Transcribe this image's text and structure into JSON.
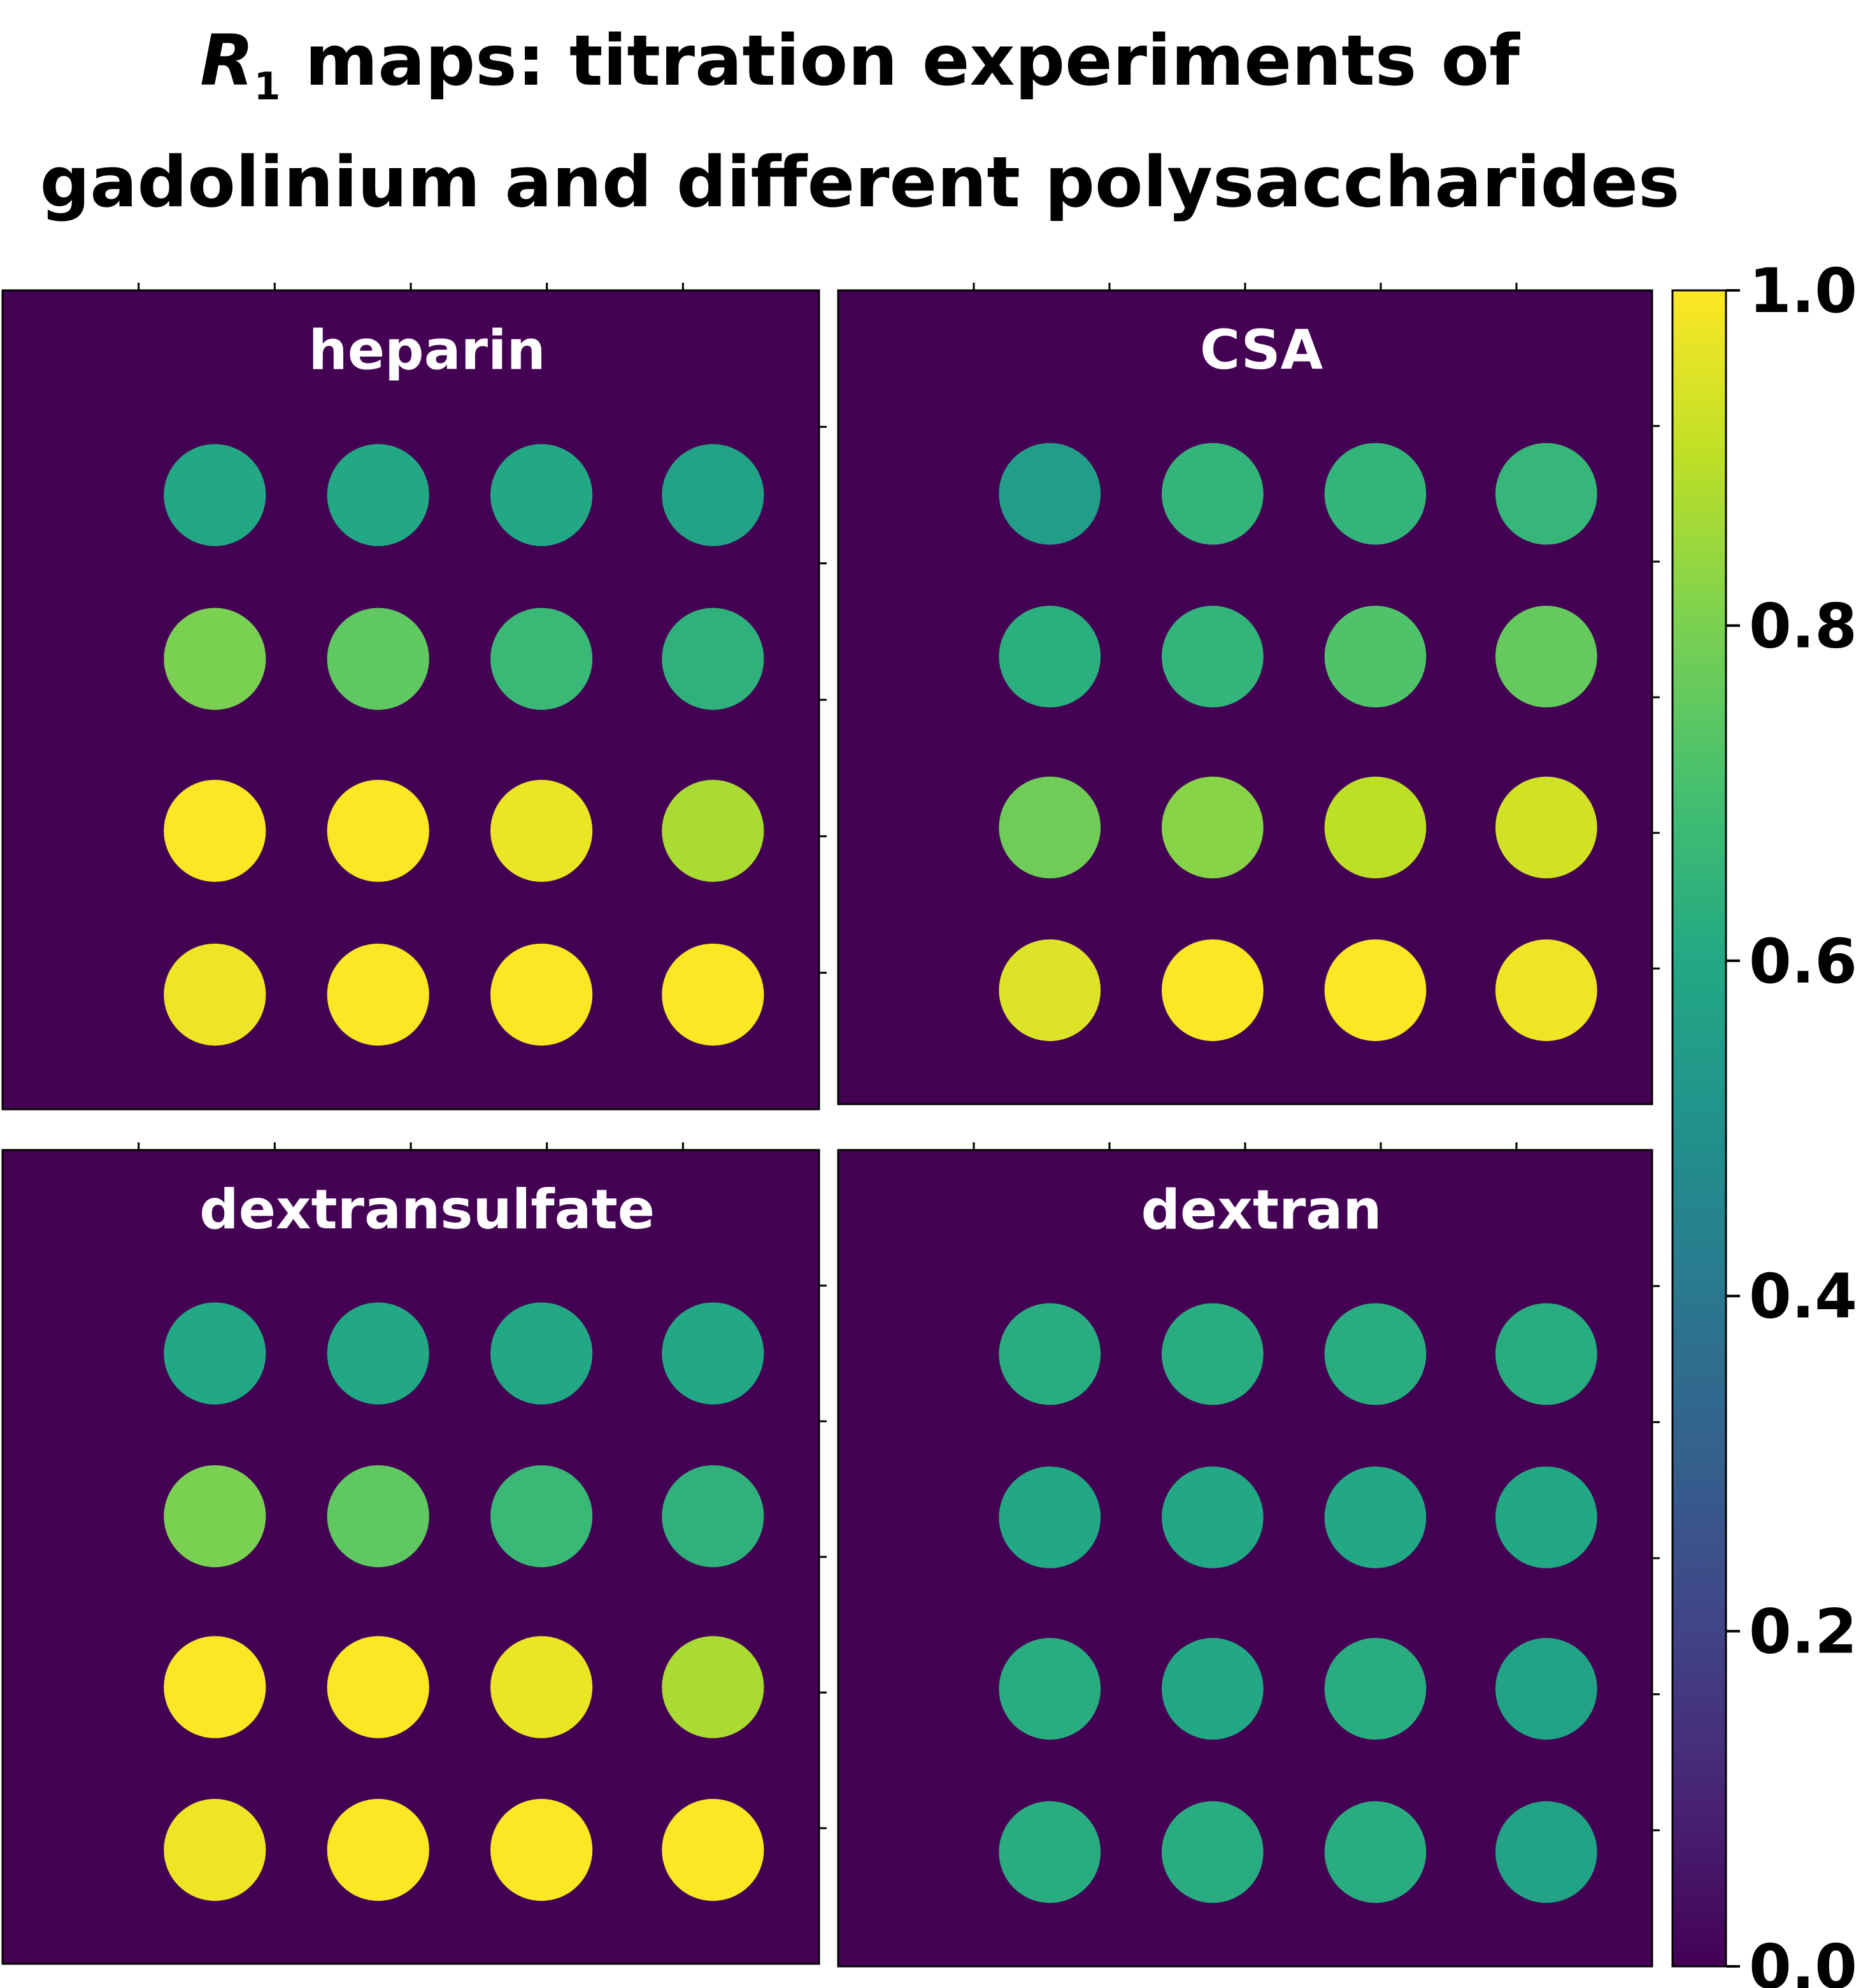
{
  "title": {
    "symbol": "R",
    "subscript": "1",
    "line1_rest": " maps: titration experiments of",
    "line2": "gadolinium and different polysaccharides"
  },
  "chart_data": {
    "type": "heatmap",
    "title": "R1 maps: titration experiments of gadolinium and different polysaccharides",
    "colormap": "viridis",
    "background_value": 0.0,
    "colorbar": {
      "min": 0.0,
      "max": 1.0,
      "ticks": [
        0.0,
        0.2,
        0.4,
        0.6,
        0.8,
        1.0
      ],
      "tick_labels": [
        "0.0",
        "0.2",
        "0.4",
        "0.6",
        "0.8",
        "1.0"
      ]
    },
    "panels": [
      {
        "name": "heparin",
        "values": [
          [
            0.6,
            0.6,
            0.6,
            0.58
          ],
          [
            0.8,
            0.75,
            0.67,
            0.64
          ],
          [
            1.0,
            1.0,
            0.97,
            0.87
          ],
          [
            0.98,
            1.0,
            1.0,
            1.0
          ]
        ]
      },
      {
        "name": "CSA",
        "values": [
          [
            0.55,
            0.65,
            0.65,
            0.66
          ],
          [
            0.63,
            0.65,
            0.72,
            0.76
          ],
          [
            0.78,
            0.82,
            0.9,
            0.93
          ],
          [
            0.95,
            1.0,
            1.0,
            0.98
          ]
        ]
      },
      {
        "name": "dextransulfate",
        "values": [
          [
            0.6,
            0.6,
            0.6,
            0.6
          ],
          [
            0.8,
            0.75,
            0.67,
            0.64
          ],
          [
            1.0,
            1.0,
            0.97,
            0.87
          ],
          [
            0.98,
            1.0,
            1.0,
            1.0
          ]
        ]
      },
      {
        "name": "dextran",
        "values": [
          [
            0.62,
            0.62,
            0.62,
            0.62
          ],
          [
            0.6,
            0.6,
            0.6,
            0.6
          ],
          [
            0.62,
            0.6,
            0.62,
            0.58
          ],
          [
            0.62,
            0.62,
            0.62,
            0.58
          ]
        ]
      }
    ]
  }
}
